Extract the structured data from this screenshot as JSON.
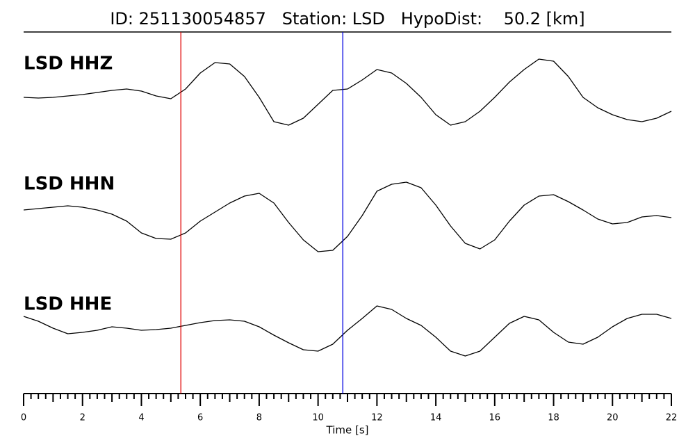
{
  "chart_data": {
    "type": "line",
    "title": "ID: 251130054857   Station: LSD   HypoDist:    50.2 [km]",
    "x_label": "Time [s]",
    "xlim": [
      0,
      22
    ],
    "xticks": [
      0,
      2,
      4,
      6,
      8,
      10,
      12,
      14,
      16,
      18,
      20,
      22
    ],
    "xminorticks": [
      0.25,
      0.5,
      0.75,
      1,
      1.25,
      1.5,
      1.75,
      2.25,
      2.5,
      2.75,
      3,
      3.25,
      3.5,
      3.75,
      4.25,
      4.5,
      4.75,
      5,
      5.25,
      5.5,
      5.75,
      6.25,
      6.5,
      6.75,
      7,
      7.25,
      7.5,
      7.75,
      8.25,
      8.5,
      8.75,
      9,
      9.25,
      9.5,
      9.75,
      10.25,
      10.5,
      10.75,
      11,
      11.25,
      11.5,
      11.75,
      12.25,
      12.5,
      12.75,
      13,
      13.25,
      13.5,
      13.75,
      14.25,
      14.5,
      14.75,
      15,
      15.25,
      15.5,
      15.75,
      16.25,
      16.5,
      16.75,
      17,
      17.25,
      17.5,
      17.75,
      18.25,
      18.5,
      18.75,
      19,
      19.25,
      19.5,
      19.75,
      20.25,
      20.5,
      20.75,
      21,
      21.25,
      21.5,
      21.75
    ],
    "ylim": [
      -70,
      70
    ],
    "x": [
      0,
      0.5,
      1,
      1.5,
      2,
      2.5,
      3,
      3.5,
      4,
      4.5,
      5,
      5.5,
      6,
      6.5,
      7,
      7.5,
      8,
      8.5,
      9,
      9.5,
      10,
      10.5,
      11,
      11.5,
      12,
      12.5,
      13,
      13.5,
      14,
      14.5,
      15,
      15.5,
      16,
      16.5,
      17,
      17.5,
      18,
      18.5,
      19,
      19.5,
      20,
      20.5,
      21,
      21.5,
      22
    ],
    "series": [
      {
        "name": "LSD HHZ",
        "color": "#000000",
        "label_color": "#4a9a00",
        "values": [
          -5,
          -6,
          -5,
          -3,
          -1,
          2,
          5,
          7,
          4,
          -3,
          -7,
          7,
          30,
          45,
          43,
          25,
          -5,
          -40,
          -45,
          -35,
          -15,
          5,
          7,
          20,
          35,
          30,
          15,
          -5,
          -30,
          -45,
          -40,
          -25,
          -5,
          17,
          35,
          50,
          47,
          25,
          -5,
          -20,
          -30,
          -37,
          -40,
          -35,
          -25
        ]
      },
      {
        "name": "LSD HHN",
        "color": "#000000",
        "label_color": "#4a9a00",
        "values": [
          -2,
          0,
          2,
          4,
          2,
          -2,
          -8,
          -18,
          -35,
          -43,
          -44,
          -35,
          -18,
          -5,
          8,
          18,
          22,
          8,
          -20,
          -45,
          -62,
          -60,
          -40,
          -10,
          25,
          35,
          38,
          30,
          5,
          -25,
          -50,
          -58,
          -45,
          -18,
          5,
          18,
          20,
          10,
          -2,
          -15,
          -22,
          -20,
          -12,
          -10,
          -13
        ]
      },
      {
        "name": "LSD HHE",
        "color": "#000000",
        "label_color": "#4a9a00",
        "values": [
          10,
          3,
          -7,
          -15,
          -13,
          -10,
          -5,
          -7,
          -10,
          -9,
          -7,
          -3,
          1,
          4,
          5,
          3,
          -5,
          -17,
          -28,
          -38,
          -40,
          -30,
          -10,
          7,
          25,
          20,
          7,
          -3,
          -20,
          -40,
          -47,
          -40,
          -20,
          0,
          10,
          5,
          -13,
          -27,
          -30,
          -20,
          -5,
          7,
          13,
          13,
          7
        ]
      }
    ],
    "markers": [
      {
        "x": 5.34,
        "color": "#e00000"
      },
      {
        "x": 10.84,
        "color": "#0000e0"
      }
    ]
  }
}
